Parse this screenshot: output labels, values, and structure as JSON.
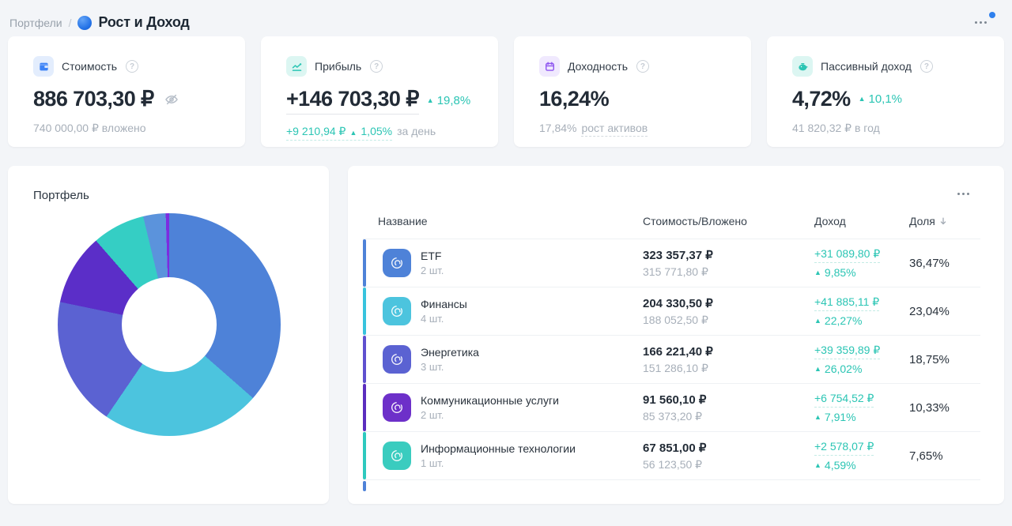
{
  "page": {
    "breadcrumb": "Портфели",
    "breadcrumb_separator": "/",
    "title": "Рост и Доход"
  },
  "icons": {
    "up_arrow": "▲",
    "help_glyph": "?"
  },
  "stats": [
    {
      "label": "Стоимость",
      "icon": "wallet-icon",
      "icon_color": "#3b82f6",
      "icon_bg": "#e3edfd",
      "value": "886 703,30 ₽",
      "sub": "740 000,00 ₽ вложено"
    },
    {
      "label": "Прибыль",
      "icon": "chart-icon",
      "icon_color": "#2bc5b4",
      "icon_bg": "#dcf6f2",
      "value": "+146 703,30 ₽",
      "delta": "19,8%",
      "sub_amount": "+9 210,94 ₽",
      "sub_delta": "1,05%",
      "sub_gray": "за день"
    },
    {
      "label": "Доходность",
      "icon": "calendar-icon",
      "icon_color": "#8e55f0",
      "icon_bg": "#f0e9fe",
      "value": "16,24%",
      "sub_gray": "17,84%",
      "sub_underlined": "рост активов"
    },
    {
      "label": "Пассивный доход",
      "icon": "piggy-bank-icon",
      "icon_color": "#2bc5b4",
      "icon_bg": "#dcf6f2",
      "value": "4,72%",
      "delta": "10,1%",
      "sub": "41 820,32 ₽ в год"
    }
  ],
  "chart_data": {
    "type": "pie",
    "donut": true,
    "title": "Портфель",
    "legend_position": "none",
    "segments": [
      {
        "label": "ETF",
        "value": 36.47,
        "color": "#4e82d8"
      },
      {
        "label": "Финансы",
        "value": 23.04,
        "color": "#4cc4de"
      },
      {
        "label": "Энергетика",
        "value": 18.75,
        "color": "#5b62d2"
      },
      {
        "label": "Коммуникационные услуги",
        "value": 10.33,
        "color": "#5b2ec8"
      },
      {
        "label": "Информационные технологии",
        "value": 7.65,
        "color": "#35cec4"
      },
      {
        "label": "",
        "value": 3.26,
        "color": "#5b93dc"
      },
      {
        "label": "",
        "value": 0.5,
        "color": "#7c2ce0"
      }
    ]
  },
  "table": {
    "columns": {
      "name": "Название",
      "value": "Стоимость/Вложено",
      "income": "Доход",
      "share": "Доля"
    },
    "clipped_row_bar_color": "#4e82d8",
    "rows": [
      {
        "name": "ETF",
        "count": "2 шт.",
        "value": "323 357,37 ₽",
        "invested": "315 771,80 ₽",
        "income": "+31 089,80 ₽",
        "income_pct": "9,85%",
        "share": "36,47%",
        "icon_color": "#4e82d8",
        "bar_color": "#4e82d8"
      },
      {
        "name": "Финансы",
        "count": "4 шт.",
        "value": "204 330,50 ₽",
        "invested": "188 052,50 ₽",
        "income": "+41 885,11 ₽",
        "income_pct": "22,27%",
        "share": "23,04%",
        "icon_color": "#4cc4de",
        "bar_color": "#38c3dd"
      },
      {
        "name": "Энергетика",
        "count": "3 шт.",
        "value": "166 221,40 ₽",
        "invested": "151 286,10 ₽",
        "income": "+39 359,89 ₽",
        "income_pct": "26,02%",
        "share": "18,75%",
        "icon_color": "#5b62d2",
        "bar_color": "#5f50cf"
      },
      {
        "name": "Коммуникационные услуги",
        "count": "2 шт.",
        "value": "91 560,10 ₽",
        "invested": "85 373,20 ₽",
        "income": "+6 754,52 ₽",
        "income_pct": "7,91%",
        "share": "10,33%",
        "icon_color": "#6d30c9",
        "bar_color": "#5b2dbe"
      },
      {
        "name": "Информационные технологии",
        "count": "1 шт.",
        "value": "67 851,00 ₽",
        "invested": "56 123,50 ₽",
        "income": "+2 578,07 ₽",
        "income_pct": "4,59%",
        "share": "7,65%",
        "icon_color": "#3accbf",
        "bar_color": "#2ec9be"
      }
    ]
  }
}
